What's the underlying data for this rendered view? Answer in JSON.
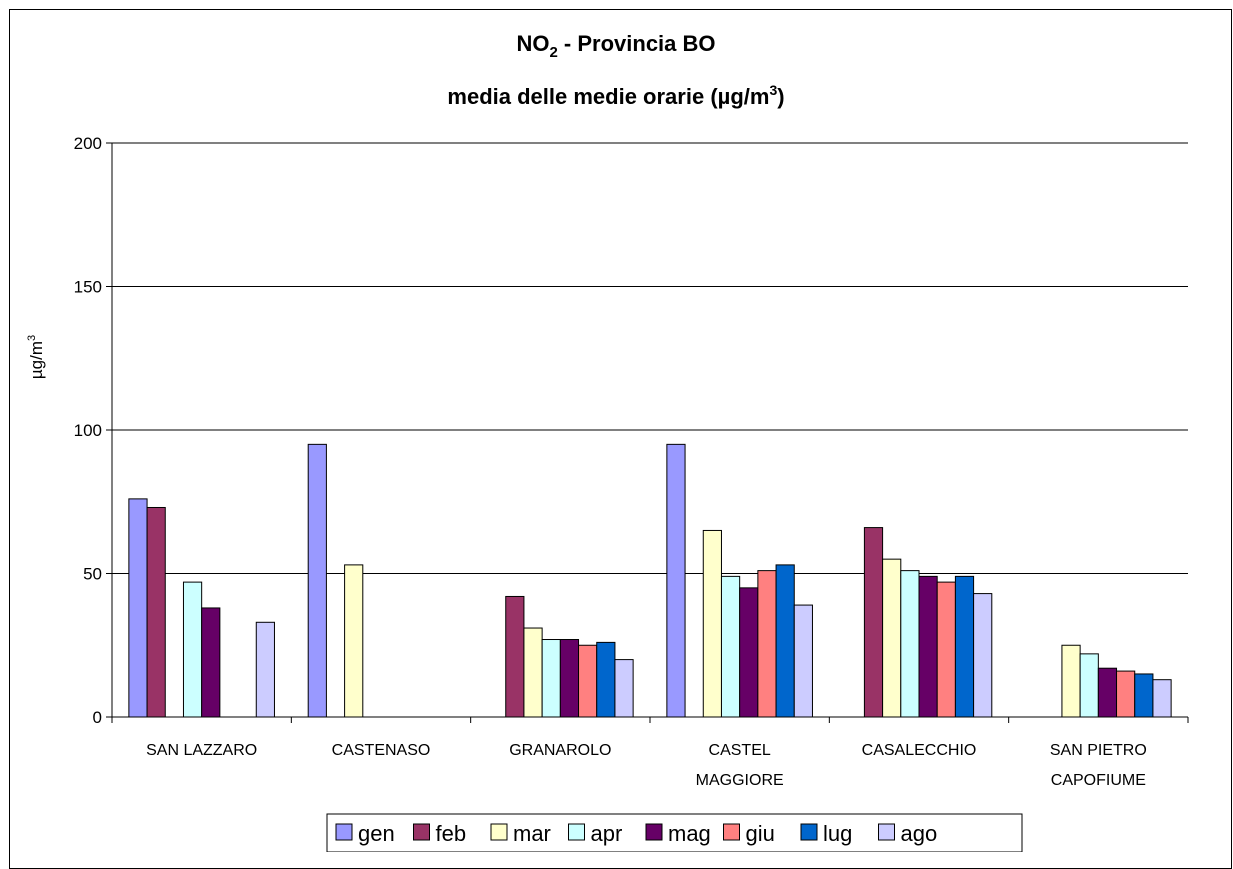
{
  "chart_data": {
    "type": "bar",
    "title_prefix": "NO",
    "title_subscript": "2",
    "title_suffix": " - Provincia BO",
    "subtitle_prefix": "media delle medie orarie (",
    "subtitle_unit": "µg/m",
    "subtitle_superscript": "3",
    "subtitle_suffix": ")",
    "ylabel_unit": "µg/m",
    "ylabel_superscript": "3",
    "ylim": [
      0,
      200
    ],
    "yticks": [
      "0",
      "50",
      "100",
      "150",
      "200"
    ],
    "grid": true,
    "legend_position": "bottom",
    "categories": [
      [
        "SAN LAZZARO"
      ],
      [
        "CASTENASO"
      ],
      [
        "GRANAROLO"
      ],
      [
        "CASTEL",
        "MAGGIORE"
      ],
      [
        "CASALECCHIO"
      ],
      [
        "SAN PIETRO",
        "CAPOFIUME"
      ]
    ],
    "series": [
      {
        "name": "gen",
        "color": "#9999ff",
        "values": [
          76,
          95,
          null,
          95,
          null,
          null
        ]
      },
      {
        "name": "feb",
        "color": "#993366",
        "values": [
          73,
          null,
          42,
          null,
          66,
          null
        ]
      },
      {
        "name": "mar",
        "color": "#ffffcc",
        "values": [
          null,
          53,
          31,
          65,
          55,
          25
        ]
      },
      {
        "name": "apr",
        "color": "#ccffff",
        "values": [
          47,
          null,
          27,
          49,
          51,
          22
        ]
      },
      {
        "name": "mag",
        "color": "#660066",
        "values": [
          38,
          null,
          27,
          45,
          49,
          17
        ]
      },
      {
        "name": "giu",
        "color": "#ff8080",
        "values": [
          null,
          null,
          25,
          51,
          47,
          16
        ]
      },
      {
        "name": "lug",
        "color": "#0066cc",
        "values": [
          null,
          null,
          26,
          53,
          49,
          15
        ]
      },
      {
        "name": "ago",
        "color": "#ccccff",
        "values": [
          33,
          null,
          20,
          39,
          43,
          13
        ]
      }
    ]
  }
}
